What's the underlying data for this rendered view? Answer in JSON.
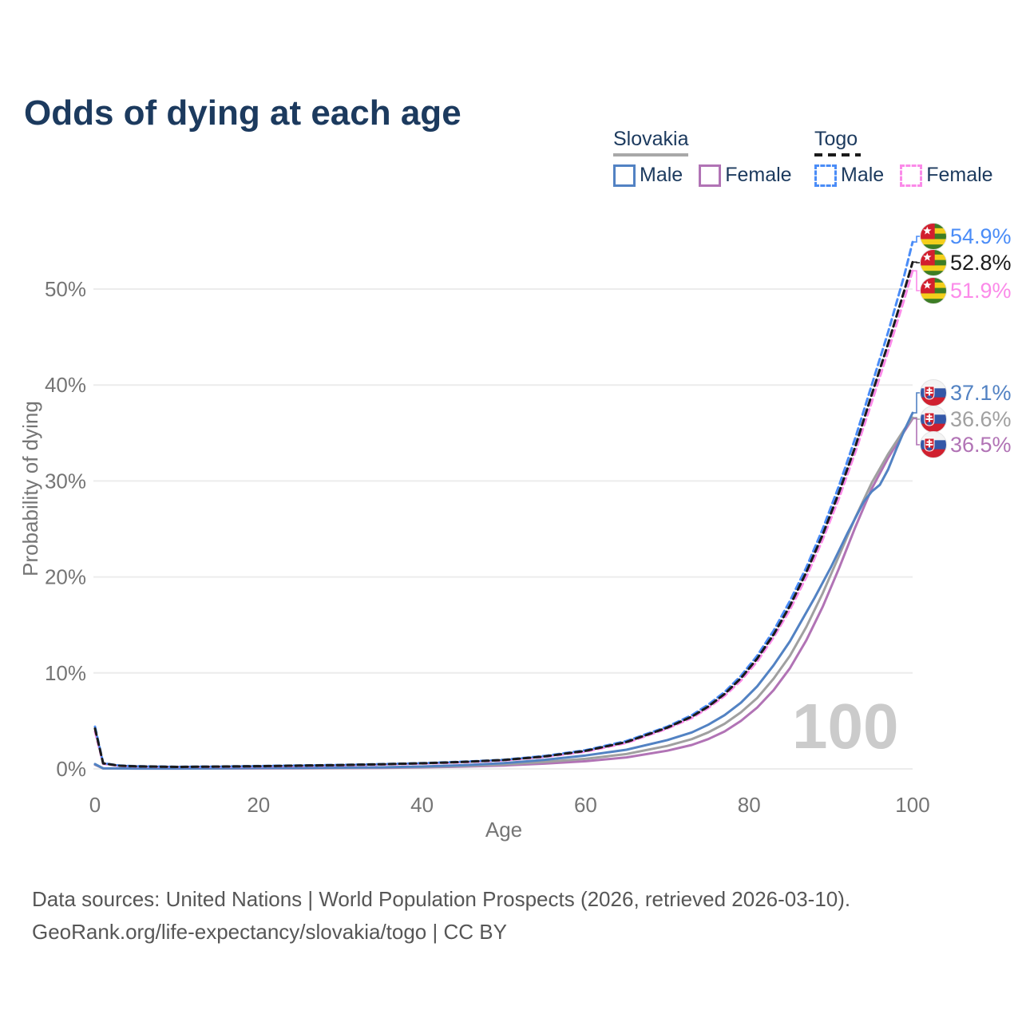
{
  "header": {
    "title": "Odds of dying at each age"
  },
  "legend": {
    "slovakia": {
      "title": "Slovakia",
      "male": "Male",
      "female": "Female",
      "underline_color": "#a8a8a8",
      "underline_style": "solid"
    },
    "togo": {
      "title": "Togo",
      "male": "Male",
      "female": "Female",
      "underline_color": "#1b1b1b",
      "underline_style": "dashed"
    }
  },
  "watermark": "100",
  "footer": {
    "line1": "Data sources: United Nations | World Population Prospects (2026, retrieved 2026-03-10).",
    "line2": "GeoRank.org/life-expectancy/slovakia/togo | CC BY"
  },
  "chart_data": {
    "type": "line",
    "title": "Odds of dying at each age",
    "xlabel": "Age",
    "ylabel": "Probability of dying",
    "xlim": [
      0,
      100
    ],
    "ylim": [
      0,
      50
    ],
    "xticks": [
      0,
      20,
      40,
      60,
      80,
      100
    ],
    "yticks": [
      0,
      10,
      20,
      30,
      40,
      50
    ],
    "ytick_suffix": "%",
    "grid": "horizontal",
    "legend_position": "top-right",
    "series": [
      {
        "id": "slovakia_female",
        "name": "Slovakia Female",
        "color": "#b173b5",
        "dash": false,
        "points": [
          [
            0,
            0.43
          ],
          [
            1,
            0.05
          ],
          [
            5,
            0.03
          ],
          [
            10,
            0.03
          ],
          [
            15,
            0.04
          ],
          [
            20,
            0.05
          ],
          [
            25,
            0.06
          ],
          [
            30,
            0.08
          ],
          [
            35,
            0.11
          ],
          [
            40,
            0.16
          ],
          [
            45,
            0.24
          ],
          [
            50,
            0.36
          ],
          [
            55,
            0.55
          ],
          [
            60,
            0.8
          ],
          [
            65,
            1.2
          ],
          [
            70,
            1.9
          ],
          [
            73,
            2.5
          ],
          [
            75,
            3.1
          ],
          [
            77,
            3.9
          ],
          [
            79,
            5.0
          ],
          [
            81,
            6.4
          ],
          [
            83,
            8.2
          ],
          [
            85,
            10.5
          ],
          [
            87,
            13.4
          ],
          [
            89,
            16.9
          ],
          [
            91,
            20.9
          ],
          [
            93,
            25.2
          ],
          [
            95,
            29.2
          ],
          [
            97,
            32.4
          ],
          [
            99,
            35.2
          ],
          [
            100,
            36.5
          ]
        ]
      },
      {
        "id": "slovakia_both",
        "name": "Slovakia Both sexes",
        "color": "#a0a0a0",
        "dash": false,
        "points": [
          [
            0,
            0.47
          ],
          [
            1,
            0.05
          ],
          [
            5,
            0.04
          ],
          [
            10,
            0.04
          ],
          [
            15,
            0.05
          ],
          [
            20,
            0.08
          ],
          [
            25,
            0.09
          ],
          [
            30,
            0.11
          ],
          [
            35,
            0.14
          ],
          [
            40,
            0.2
          ],
          [
            45,
            0.3
          ],
          [
            50,
            0.46
          ],
          [
            55,
            0.72
          ],
          [
            60,
            1.05
          ],
          [
            65,
            1.55
          ],
          [
            70,
            2.4
          ],
          [
            73,
            3.1
          ],
          [
            75,
            3.8
          ],
          [
            77,
            4.7
          ],
          [
            79,
            5.9
          ],
          [
            81,
            7.4
          ],
          [
            83,
            9.4
          ],
          [
            85,
            11.8
          ],
          [
            87,
            14.8
          ],
          [
            89,
            18.3
          ],
          [
            91,
            22.2
          ],
          [
            93,
            26.2
          ],
          [
            95,
            29.8
          ],
          [
            97,
            32.8
          ],
          [
            99,
            35.4
          ],
          [
            100,
            36.6
          ]
        ]
      },
      {
        "id": "slovakia_male",
        "name": "Slovakia Male",
        "color": "#5282c3",
        "dash": false,
        "points": [
          [
            0,
            0.5
          ],
          [
            1,
            0.06
          ],
          [
            5,
            0.04
          ],
          [
            10,
            0.04
          ],
          [
            15,
            0.06
          ],
          [
            20,
            0.1
          ],
          [
            25,
            0.11
          ],
          [
            30,
            0.13
          ],
          [
            35,
            0.17
          ],
          [
            40,
            0.25
          ],
          [
            45,
            0.38
          ],
          [
            50,
            0.6
          ],
          [
            55,
            0.95
          ],
          [
            60,
            1.4
          ],
          [
            65,
            2.0
          ],
          [
            70,
            3.0
          ],
          [
            73,
            3.8
          ],
          [
            75,
            4.6
          ],
          [
            77,
            5.6
          ],
          [
            79,
            6.9
          ],
          [
            81,
            8.6
          ],
          [
            83,
            10.8
          ],
          [
            85,
            13.3
          ],
          [
            86,
            14.8
          ],
          [
            88,
            17.8
          ],
          [
            90,
            21.0
          ],
          [
            92,
            24.5
          ],
          [
            94,
            27.8
          ],
          [
            95,
            28.9
          ],
          [
            96,
            29.6
          ],
          [
            97,
            31.2
          ],
          [
            98,
            33.3
          ],
          [
            99,
            35.3
          ],
          [
            100,
            37.1
          ]
        ]
      },
      {
        "id": "togo_female",
        "name": "Togo Female",
        "color": "#fb8ae9",
        "dash": true,
        "points": [
          [
            0,
            3.9
          ],
          [
            1,
            0.53
          ],
          [
            3,
            0.31
          ],
          [
            5,
            0.25
          ],
          [
            10,
            0.2
          ],
          [
            15,
            0.22
          ],
          [
            20,
            0.26
          ],
          [
            25,
            0.31
          ],
          [
            30,
            0.37
          ],
          [
            35,
            0.45
          ],
          [
            40,
            0.55
          ],
          [
            45,
            0.68
          ],
          [
            50,
            0.88
          ],
          [
            55,
            1.25
          ],
          [
            60,
            1.8
          ],
          [
            65,
            2.7
          ],
          [
            70,
            4.2
          ],
          [
            73,
            5.3
          ],
          [
            75,
            6.35
          ],
          [
            77,
            7.6
          ],
          [
            79,
            9.2
          ],
          [
            81,
            11.2
          ],
          [
            83,
            13.7
          ],
          [
            85,
            16.6
          ],
          [
            87,
            20.0
          ],
          [
            89,
            23.9
          ],
          [
            91,
            28.2
          ],
          [
            93,
            33.0
          ],
          [
            95,
            38.2
          ],
          [
            97,
            43.5
          ],
          [
            99,
            49.0
          ],
          [
            100,
            51.9
          ]
        ]
      },
      {
        "id": "togo_male",
        "name": "Togo Male",
        "color": "#4a8cf7",
        "dash": true,
        "points": [
          [
            0,
            4.4
          ],
          [
            1,
            0.6
          ],
          [
            3,
            0.35
          ],
          [
            5,
            0.28
          ],
          [
            10,
            0.22
          ],
          [
            15,
            0.25
          ],
          [
            20,
            0.3
          ],
          [
            25,
            0.36
          ],
          [
            30,
            0.42
          ],
          [
            35,
            0.5
          ],
          [
            40,
            0.6
          ],
          [
            45,
            0.75
          ],
          [
            50,
            0.95
          ],
          [
            55,
            1.35
          ],
          [
            60,
            1.95
          ],
          [
            65,
            2.9
          ],
          [
            70,
            4.4
          ],
          [
            73,
            5.6
          ],
          [
            75,
            6.7
          ],
          [
            77,
            8.0
          ],
          [
            79,
            9.7
          ],
          [
            81,
            11.8
          ],
          [
            83,
            14.4
          ],
          [
            85,
            17.5
          ],
          [
            87,
            21.0
          ],
          [
            89,
            25.0
          ],
          [
            91,
            29.5
          ],
          [
            93,
            34.5
          ],
          [
            95,
            40.0
          ],
          [
            97,
            45.5
          ],
          [
            99,
            51.5
          ],
          [
            100,
            54.9
          ]
        ]
      },
      {
        "id": "togo_both",
        "name": "Togo Both sexes",
        "color": "#1b1b1b",
        "dash": true,
        "points": [
          [
            0,
            4.2
          ],
          [
            1,
            0.57
          ],
          [
            3,
            0.33
          ],
          [
            5,
            0.27
          ],
          [
            10,
            0.21
          ],
          [
            15,
            0.24
          ],
          [
            20,
            0.28
          ],
          [
            25,
            0.34
          ],
          [
            30,
            0.4
          ],
          [
            35,
            0.48
          ],
          [
            40,
            0.58
          ],
          [
            45,
            0.72
          ],
          [
            50,
            0.92
          ],
          [
            55,
            1.3
          ],
          [
            60,
            1.88
          ],
          [
            65,
            2.8
          ],
          [
            70,
            4.3
          ],
          [
            73,
            5.45
          ],
          [
            75,
            6.5
          ],
          [
            77,
            7.8
          ],
          [
            79,
            9.45
          ],
          [
            81,
            11.5
          ],
          [
            83,
            14.0
          ],
          [
            85,
            17.0
          ],
          [
            87,
            20.5
          ],
          [
            89,
            24.4
          ],
          [
            91,
            28.8
          ],
          [
            93,
            33.6
          ],
          [
            95,
            39.0
          ],
          [
            97,
            44.3
          ],
          [
            99,
            49.9
          ],
          [
            100,
            52.8
          ]
        ]
      }
    ],
    "end_labels": [
      {
        "series": "togo_male",
        "text": "54.9%",
        "value": 54.9,
        "flag": "togo"
      },
      {
        "series": "togo_both",
        "text": "52.8%",
        "value": 52.8,
        "flag": "togo"
      },
      {
        "series": "togo_female",
        "text": "51.9%",
        "value": 51.9,
        "flag": "togo"
      },
      {
        "series": "slovakia_male",
        "text": "37.1%",
        "value": 37.1,
        "flag": "slovakia"
      },
      {
        "series": "slovakia_both",
        "text": "36.6%",
        "value": 36.6,
        "flag": "slovakia"
      },
      {
        "series": "slovakia_female",
        "text": "36.5%",
        "value": 36.5,
        "flag": "slovakia"
      }
    ]
  }
}
